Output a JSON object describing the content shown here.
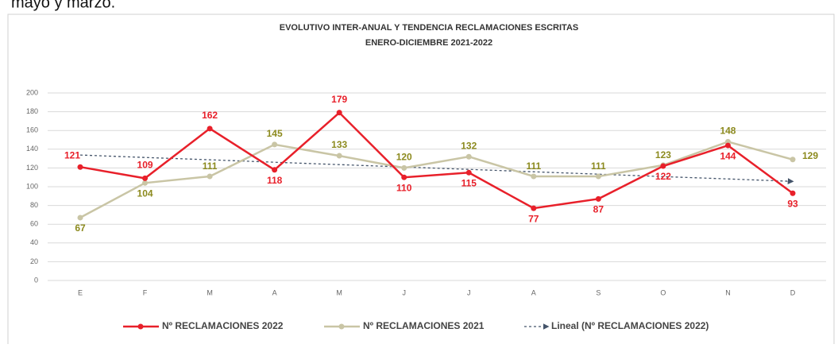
{
  "page_text": "mayo y marzo.",
  "chart_data": {
    "type": "line",
    "title": "EVOLUTIVO INTER-ANUAL Y TENDENCIA RECLAMACIONES ESCRITAS",
    "subtitle": "ENERO-DICIEMBRE 2021-2022",
    "categories": [
      "E",
      "F",
      "M",
      "A",
      "M",
      "J",
      "J",
      "A",
      "S",
      "O",
      "N",
      "D"
    ],
    "series": [
      {
        "name": "Nº RECLAMACIONES 2022",
        "color": "#e8202a",
        "label_color": "#e8202a",
        "markers": true,
        "data_labels": true,
        "values": [
          121,
          109,
          162,
          118,
          179,
          110,
          115,
          77,
          87,
          122,
          144,
          93
        ]
      },
      {
        "name": "Nº RECLAMACIONES 2021",
        "color": "#c9c5a5",
        "label_color": "#8c8a1e",
        "markers": true,
        "data_labels": true,
        "values": [
          67,
          104,
          111,
          145,
          133,
          120,
          132,
          111,
          111,
          123,
          148,
          129
        ]
      },
      {
        "name": "Lineal (Nº RECLAMACIONES 2022)",
        "color": "#44546a",
        "dashed": true,
        "markers": false,
        "data_labels": false,
        "values": [
          133.8,
          131.2,
          128.7,
          126.1,
          123.6,
          121.0,
          118.5,
          115.9,
          113.4,
          110.8,
          108.3,
          105.7
        ]
      }
    ],
    "ylim": [
      0,
      200
    ],
    "yticks": [
      0,
      20,
      40,
      60,
      80,
      100,
      120,
      140,
      160,
      180,
      200
    ],
    "grid": true,
    "legend": "bottom"
  }
}
